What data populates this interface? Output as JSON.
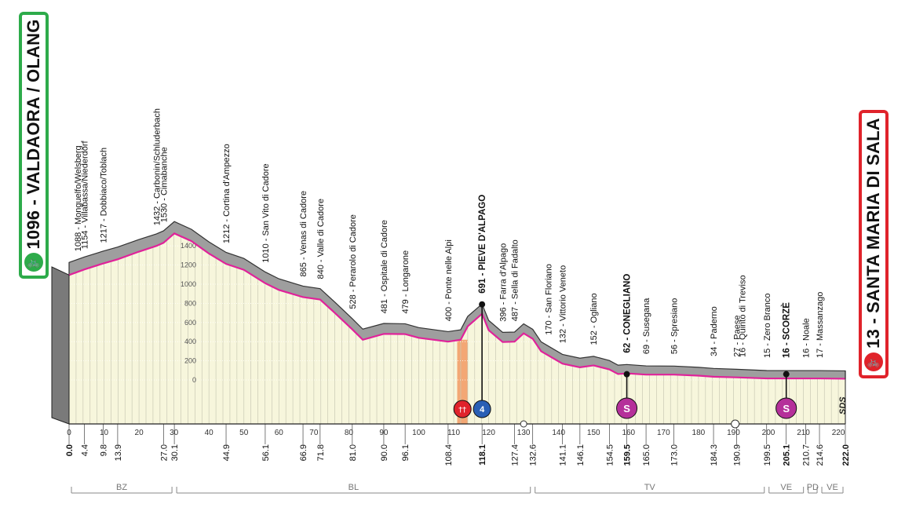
{
  "start": {
    "title": "1096 - VALDAORA / OLANG",
    "icon": "cyclist-icon",
    "color": "#2dab4a"
  },
  "finish": {
    "title": "13 - SANTA MARIA DI SALA",
    "icon": "cyclist-icon",
    "color": "#e0232b"
  },
  "logo": {
    "text": "SDS"
  },
  "chart_data": {
    "type": "area",
    "ylim": [
      -200,
      1500
    ],
    "xlim": [
      0,
      222
    ],
    "altitude_ticks": [
      0,
      200,
      400,
      600,
      800,
      1000,
      1200,
      1400
    ],
    "km_ticks": [
      0,
      10,
      20,
      30,
      40,
      50,
      60,
      70,
      80,
      90,
      100,
      110,
      120,
      130,
      140,
      150,
      160,
      170,
      180,
      190,
      200,
      210,
      220
    ],
    "profile": {
      "distance": [
        0,
        4.4,
        9.8,
        13.9,
        20,
        25,
        27.0,
        30.1,
        35,
        40,
        44.9,
        50,
        56.1,
        60,
        66.9,
        71.8,
        76,
        81.0,
        84,
        90.0,
        96.1,
        100,
        108.4,
        112,
        114,
        118.1,
        120,
        124,
        127.4,
        130,
        132.6,
        135,
        141.1,
        146.1,
        150,
        154.5,
        157,
        159.5,
        165.0,
        173.0,
        180,
        184.3,
        190.9,
        199.5,
        205.1,
        210.7,
        214.6,
        222.0
      ],
      "altitude": [
        1096,
        1154,
        1217,
        1260,
        1340,
        1400,
        1432,
        1530,
        1450,
        1320,
        1212,
        1150,
        1010,
        940,
        865,
        840,
        700,
        528,
        420,
        481,
        479,
        440,
        400,
        420,
        560,
        691,
        520,
        396,
        400,
        487,
        430,
        300,
        170,
        132,
        152,
        110,
        62,
        69,
        56,
        56,
        45,
        34,
        27,
        16,
        16,
        16,
        16,
        13
      ]
    },
    "km_markers": [
      {
        "km": "0.0",
        "bold": true
      },
      {
        "km": "4.4"
      },
      {
        "km": "9.8"
      },
      {
        "km": "13.9"
      },
      {
        "km": "27.0"
      },
      {
        "km": "30.1"
      },
      {
        "km": "44.9"
      },
      {
        "km": "56.1"
      },
      {
        "km": "66.9"
      },
      {
        "km": "71.8"
      },
      {
        "km": "81.0"
      },
      {
        "km": "90.0"
      },
      {
        "km": "96.1"
      },
      {
        "km": "108.4"
      },
      {
        "km": "118.1",
        "bold": true
      },
      {
        "km": "127.4"
      },
      {
        "km": "132.6"
      },
      {
        "km": "141.1"
      },
      {
        "km": "146.1"
      },
      {
        "km": "154.5"
      },
      {
        "km": "159.5",
        "bold": true
      },
      {
        "km": "165.0"
      },
      {
        "km": "173.0"
      },
      {
        "km": "184.3"
      },
      {
        "km": "190.9"
      },
      {
        "km": "199.5"
      },
      {
        "km": "205.1",
        "bold": true
      },
      {
        "km": "210.7"
      },
      {
        "km": "214.6"
      },
      {
        "km": "222.0",
        "bold": true
      }
    ],
    "places": [
      {
        "label": "1088 - Monguelfo/Welsberg"
      },
      {
        "label": "1154 - Villabassa/Niederdorf"
      },
      {
        "label": "1217 - Dobbiaco/Toblach"
      },
      {
        "label": "1432 - Carbonin/Schluderbach"
      },
      {
        "label": "1530 - Cimabanche"
      },
      {
        "label": "1212 - Cortina d'Ampezzo"
      },
      {
        "label": "1010 - San Vito di Cadore"
      },
      {
        "label": "865 - Venas di Cadore"
      },
      {
        "label": "840 - Valle di Cadore"
      },
      {
        "label": "528 - Perarolo di Cadore"
      },
      {
        "label": "481 - Ospitale di Cadore"
      },
      {
        "label": "479 - Longarone"
      },
      {
        "label": "400 - Ponte nelle Alpi"
      },
      {
        "label": "691 - PIEVE D'ALPAGO",
        "bold": true
      },
      {
        "label": "396 - Farra d'Alpago"
      },
      {
        "label": "487 - Sella di Fadalto"
      },
      {
        "label": "170 - San Floriano"
      },
      {
        "label": "132 - Vittorio Veneto"
      },
      {
        "label": "152 - Ogliano"
      },
      {
        "label": "62 - CONEGLIANO",
        "bold": true
      },
      {
        "label": "69 - Susegana"
      },
      {
        "label": "56 - Spresiano"
      },
      {
        "label": "34 - Paderno"
      },
      {
        "label": "27 - Paese"
      },
      {
        "label": "16 - Quinto di Treviso"
      },
      {
        "label": "15 - Zero Branco"
      },
      {
        "label": "16 - SCORZÈ",
        "bold": true
      },
      {
        "label": "16 - Noale"
      },
      {
        "label": "17 - Massanzago"
      }
    ],
    "kom": {
      "km": 118.1,
      "category": "4",
      "color": "#2a5fb5"
    },
    "sprints": [
      {
        "km": 159.5,
        "letter": "S"
      },
      {
        "km": 205.1,
        "letter": "S"
      }
    ],
    "feed_zone": {
      "from_km": 111,
      "to_km": 114,
      "color": "#f3a774"
    },
    "provinces": [
      {
        "name": "BZ",
        "from": 0,
        "to": 30.1
      },
      {
        "name": "BL",
        "from": 30.1,
        "to": 132.6
      },
      {
        "name": "TV",
        "from": 132.6,
        "to": 199.5
      },
      {
        "name": "VE",
        "from": 199.5,
        "to": 210.7
      },
      {
        "name": "PD",
        "from": 210.7,
        "to": 214.6
      },
      {
        "name": "VE",
        "from": 214.6,
        "to": 222.0
      }
    ],
    "colors": {
      "profile_line": "#e0229a",
      "profile_fill": "#f7f6dc",
      "top_band": "#9e9e9e",
      "feed_zone": "#f3a774"
    }
  }
}
